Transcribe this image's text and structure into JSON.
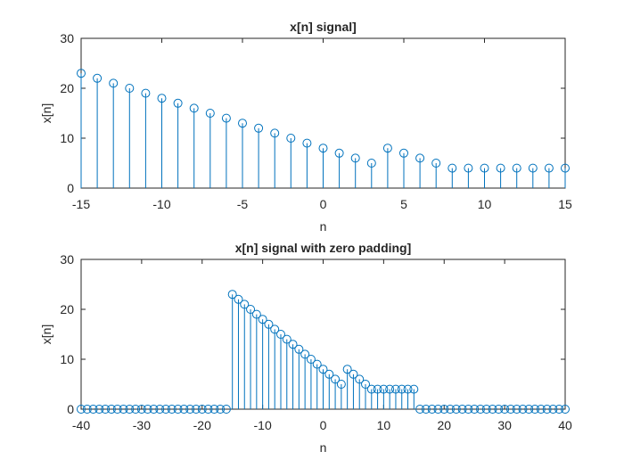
{
  "chart_data": [
    {
      "type": "stem",
      "title": "x[n] signal]",
      "xlabel": "n",
      "ylabel": "x[n]",
      "xlim": [
        -15,
        15
      ],
      "ylim": [
        0,
        30
      ],
      "xticks": [
        -15,
        -10,
        -5,
        0,
        5,
        10,
        15
      ],
      "xtick_labels": [
        "-15",
        "-10",
        "-5",
        "0",
        "5",
        "10",
        "15"
      ],
      "yticks": [
        0,
        10,
        20,
        30
      ],
      "ytick_labels": [
        "0",
        "10",
        "20",
        "30"
      ],
      "grid": false,
      "color": "#0072BD",
      "x": [
        -15,
        -14,
        -13,
        -12,
        -11,
        -10,
        -9,
        -8,
        -7,
        -6,
        -5,
        -4,
        -3,
        -2,
        -1,
        0,
        1,
        2,
        3,
        4,
        5,
        6,
        7,
        8,
        9,
        10,
        11,
        12,
        13,
        14,
        15
      ],
      "values": [
        23,
        22,
        21,
        20,
        19,
        18,
        17,
        16,
        15,
        14,
        13,
        12,
        11,
        10,
        9,
        8,
        7,
        6,
        5,
        8,
        7,
        6,
        5,
        4,
        4,
        4,
        4,
        4,
        4,
        4,
        4
      ]
    },
    {
      "type": "stem",
      "title": "x[n] signal with zero padding]",
      "xlabel": "n",
      "ylabel": "x[n]",
      "xlim": [
        -40,
        40
      ],
      "ylim": [
        0,
        30
      ],
      "xticks": [
        -40,
        -30,
        -20,
        -10,
        0,
        10,
        20,
        30,
        40
      ],
      "xtick_labels": [
        "-40",
        "-30",
        "-20",
        "-10",
        "0",
        "10",
        "20",
        "30",
        "40"
      ],
      "yticks": [
        0,
        10,
        20,
        30
      ],
      "ytick_labels": [
        "0",
        "10",
        "20",
        "30"
      ],
      "grid": false,
      "color": "#0072BD",
      "x": [
        -40,
        -39,
        -38,
        -37,
        -36,
        -35,
        -34,
        -33,
        -32,
        -31,
        -30,
        -29,
        -28,
        -27,
        -26,
        -25,
        -24,
        -23,
        -22,
        -21,
        -20,
        -19,
        -18,
        -17,
        -16,
        -15,
        -14,
        -13,
        -12,
        -11,
        -10,
        -9,
        -8,
        -7,
        -6,
        -5,
        -4,
        -3,
        -2,
        -1,
        0,
        1,
        2,
        3,
        4,
        5,
        6,
        7,
        8,
        9,
        10,
        11,
        12,
        13,
        14,
        15,
        16,
        17,
        18,
        19,
        20,
        21,
        22,
        23,
        24,
        25,
        26,
        27,
        28,
        29,
        30,
        31,
        32,
        33,
        34,
        35,
        36,
        37,
        38,
        39,
        40
      ],
      "values": [
        0,
        0,
        0,
        0,
        0,
        0,
        0,
        0,
        0,
        0,
        0,
        0,
        0,
        0,
        0,
        0,
        0,
        0,
        0,
        0,
        0,
        0,
        0,
        0,
        0,
        23,
        22,
        21,
        20,
        19,
        18,
        17,
        16,
        15,
        14,
        13,
        12,
        11,
        10,
        9,
        8,
        7,
        6,
        5,
        8,
        7,
        6,
        5,
        4,
        4,
        4,
        4,
        4,
        4,
        4,
        4,
        0,
        0,
        0,
        0,
        0,
        0,
        0,
        0,
        0,
        0,
        0,
        0,
        0,
        0,
        0,
        0,
        0,
        0,
        0,
        0,
        0,
        0,
        0,
        0,
        0
      ]
    }
  ]
}
